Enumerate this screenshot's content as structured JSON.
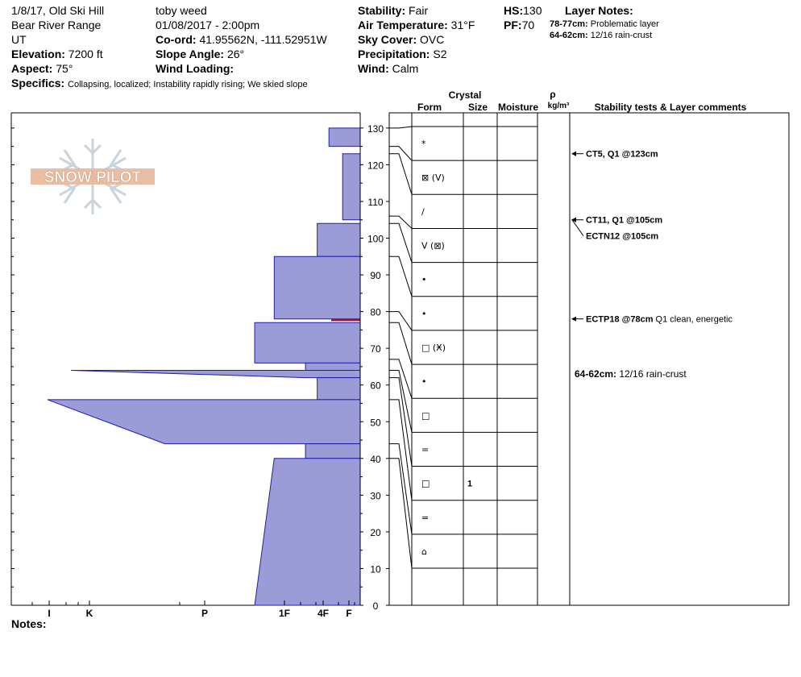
{
  "header": {
    "title": "1/8/17, Old Ski Hill",
    "range": "Bear River Range",
    "state": "UT",
    "elevation_label": "Elevation:",
    "elevation": "7200 ft",
    "aspect_label": "Aspect:",
    "aspect": "75°",
    "observer": "toby weed",
    "datetime": "01/08/2017 - 2:00pm",
    "coord_label": "Co-ord:",
    "coord": "41.95562N, -111.52951W",
    "slope_label": "Slope Angle:",
    "slope": "26°",
    "wind_loading_label": "Wind Loading:",
    "wind_loading": "",
    "stability_label": "Stability:",
    "stability": "Fair",
    "air_temp_label": "Air Temperature:",
    "air_temp": "31°F",
    "sky_label": "Sky Cover:",
    "sky": "OVC",
    "precip_label": "Precipitation:",
    "precip": "S2",
    "wind_label": "Wind:",
    "wind": "Calm",
    "hs_label": "HS:",
    "hs": "130",
    "pf_label": "PF:",
    "pf": "70",
    "layer_notes_label": "Layer Notes:",
    "layer_note_1_key": "78-77cm:",
    "layer_note_1_val": "Problematic layer",
    "layer_note_2_key": "64-62cm:",
    "layer_note_2_val": "12/16 rain-crust",
    "specifics_label": "Specifics:",
    "specifics": "Collapsing, localized;  Instability rapidly rising;  We skied slope"
  },
  "logo_text": "SNOW PILOT",
  "table_headers": {
    "crystal": "Crystal",
    "form": "Form",
    "size": "Size",
    "moisture": "Moisture",
    "rho": "ρ",
    "density": "kg/m³",
    "comments": "Stability tests & Layer comments"
  },
  "notes_label": "Notes:",
  "colors": {
    "profile_fill": "#9b9bd7",
    "profile_stroke": "#1f1fa8",
    "highlight": "#8b1a3a"
  },
  "chart_data": {
    "type": "area",
    "title": "",
    "ylabel": "",
    "xlabel": "",
    "ylim": [
      0,
      130
    ],
    "yticks": [
      0,
      10,
      20,
      30,
      40,
      50,
      60,
      70,
      80,
      90,
      100,
      110,
      120,
      130
    ],
    "hardness_ticks": [
      "I",
      "K",
      "P",
      "1F",
      "4F",
      "F"
    ],
    "hardness_profile": [
      {
        "top": 130,
        "bottom": 125,
        "hardness": 0.8,
        "hardness_bottom": 0.8
      },
      {
        "top": 123,
        "bottom": 105,
        "hardness": 0.45,
        "hardness_bottom": 0.45
      },
      {
        "top": 104,
        "bottom": 95,
        "hardness": 1.1,
        "hardness_bottom": 1.1
      },
      {
        "top": 95,
        "bottom": 78,
        "hardness": 2.2,
        "hardness_bottom": 2.2
      },
      {
        "top": 77,
        "bottom": 66,
        "hardness": 2.7,
        "hardness_bottom": 2.7
      },
      {
        "top": 66,
        "bottom": 64,
        "hardness": 1.4,
        "hardness_bottom": 1.4
      },
      {
        "top": 64,
        "bottom": 62,
        "hardness": 7.4,
        "hardness_bottom": 1.4
      },
      {
        "top": 62,
        "bottom": 56,
        "hardness": 1.1,
        "hardness_bottom": 1.1
      },
      {
        "top": 56,
        "bottom": 44,
        "hardness": 8.0,
        "hardness_bottom": 5.0
      },
      {
        "top": 44,
        "bottom": 40,
        "hardness": 1.4,
        "hardness_bottom": 1.4
      },
      {
        "top": 40,
        "bottom": 0,
        "hardness": 2.2,
        "hardness_bottom": 2.7
      }
    ],
    "layers": [
      {
        "top": 130,
        "bottom": 125,
        "form": "*",
        "size": "",
        "moisture": ""
      },
      {
        "top": 125,
        "bottom": 123,
        "form": "⊠ (V)",
        "size": "",
        "moisture": ""
      },
      {
        "top": 123,
        "bottom": 106,
        "form": "/",
        "size": "",
        "moisture": ""
      },
      {
        "top": 106,
        "bottom": 104,
        "form": "V (⊠)",
        "size": "",
        "moisture": ""
      },
      {
        "top": 104,
        "bottom": 95,
        "form": "•",
        "size": "",
        "moisture": ""
      },
      {
        "top": 95,
        "bottom": 80,
        "form": "•",
        "size": "",
        "moisture": ""
      },
      {
        "top": 80,
        "bottom": 77,
        "form": "□ (Ӿ)",
        "size": "",
        "moisture": ""
      },
      {
        "top": 77,
        "bottom": 67,
        "form": "•",
        "size": "",
        "moisture": ""
      },
      {
        "top": 67,
        "bottom": 64,
        "form": "□",
        "size": "",
        "moisture": ""
      },
      {
        "top": 64,
        "bottom": 62,
        "form": "=",
        "size": "",
        "moisture": ""
      },
      {
        "top": 62,
        "bottom": 56,
        "form": "□",
        "size": "1",
        "moisture": ""
      },
      {
        "top": 56,
        "bottom": 44,
        "form": "=",
        "size": "",
        "moisture": ""
      },
      {
        "top": 44,
        "bottom": 40,
        "form": "⌂",
        "size": "",
        "moisture": ""
      }
    ],
    "tests": [
      {
        "depth": 123,
        "text": "CT5, Q1 @123cm",
        "extra": ""
      },
      {
        "depth": 105,
        "text": "CT11, Q1 @105cm",
        "extra": ""
      },
      {
        "depth": 105,
        "text": "ECTN12 @105cm",
        "extra": ""
      },
      {
        "depth": 78,
        "text": "ECTP18 @78cm",
        "extra": "Q1 clean, energetic"
      }
    ],
    "layer_comments": [
      {
        "depth": 63,
        "key": "64-62cm:",
        "text": "12/16 rain-crust"
      }
    ],
    "highlight_layer": {
      "top": 78,
      "bottom": 77
    }
  }
}
